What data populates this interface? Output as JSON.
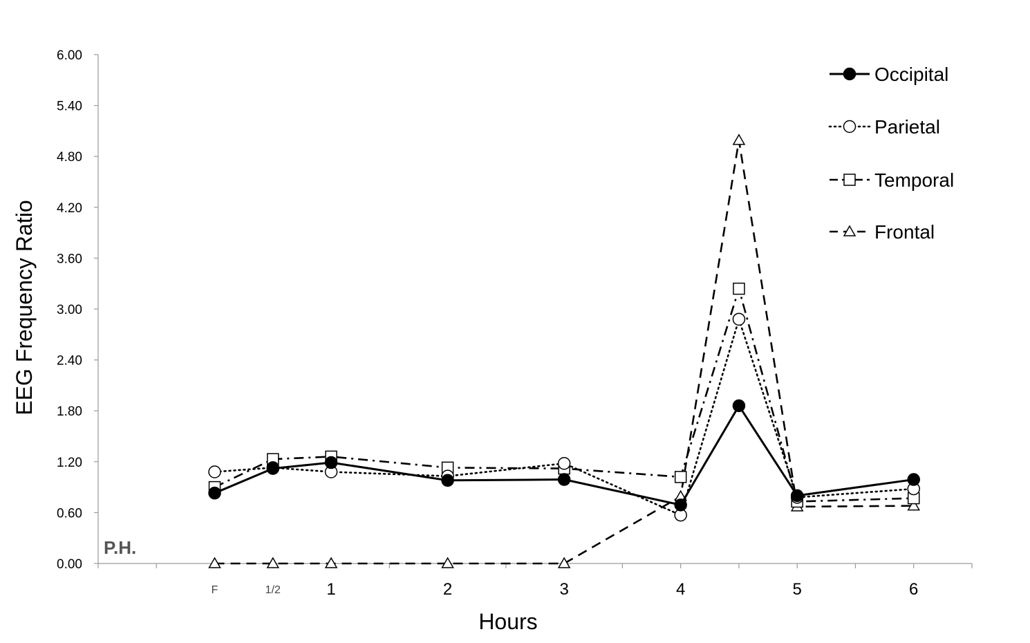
{
  "chart_data": {
    "type": "line",
    "ylabel": "EEG Frequency Ratio",
    "xlabel": "Hours",
    "ylim": [
      0,
      6
    ],
    "yticks": [
      "0.00",
      "0.60",
      "1.20",
      "1.80",
      "2.40",
      "3.00",
      "3.60",
      "4.20",
      "4.80",
      "5.40",
      "6.00"
    ],
    "xlim": [
      -1,
      6.5
    ],
    "x": [
      0,
      0.5,
      1,
      2,
      3,
      4,
      4.5,
      5,
      6
    ],
    "x_tick_labels": [
      {
        "x": 0,
        "label": "F",
        "small": true
      },
      {
        "x": 0.5,
        "label": "1/2",
        "small": true
      },
      {
        "x": 1,
        "label": "1",
        "small": false
      },
      {
        "x": 2,
        "label": "2",
        "small": false
      },
      {
        "x": 3,
        "label": "3",
        "small": false
      },
      {
        "x": 4,
        "label": "4",
        "small": false
      },
      {
        "x": 5,
        "label": "5",
        "small": false
      },
      {
        "x": 6,
        "label": "6",
        "small": false
      }
    ],
    "annotation": "P.H.",
    "grid": false,
    "legend_position": "top-right",
    "series": [
      {
        "name": "Occipital",
        "values": [
          0.83,
          1.12,
          1.19,
          0.98,
          0.99,
          0.69,
          1.86,
          0.8,
          0.99
        ],
        "line_style": "solid",
        "marker": "filled-circle"
      },
      {
        "name": "Parietal",
        "values": [
          1.08,
          1.13,
          1.08,
          1.03,
          1.18,
          0.57,
          2.88,
          0.78,
          0.88
        ],
        "line_style": "dotted",
        "marker": "open-circle"
      },
      {
        "name": "Temporal",
        "values": [
          0.9,
          1.23,
          1.26,
          1.13,
          1.12,
          1.02,
          3.24,
          0.73,
          0.77
        ],
        "line_style": "dash-dot",
        "marker": "open-square"
      },
      {
        "name": "Frontal",
        "values": [
          0.0,
          0.0,
          0.0,
          0.0,
          0.0,
          0.79,
          4.99,
          0.67,
          0.68
        ],
        "line_style": "dashed",
        "marker": "open-triangle"
      }
    ]
  }
}
